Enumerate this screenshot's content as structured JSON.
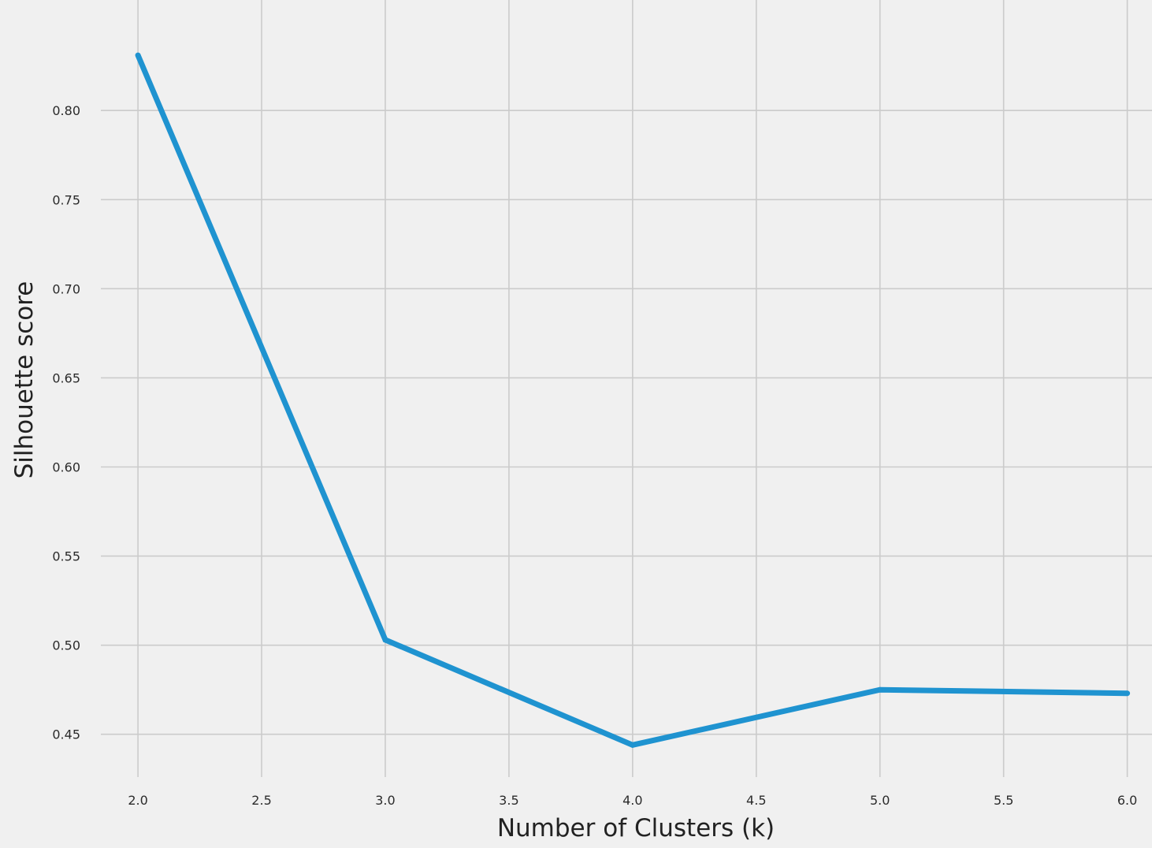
{
  "chart_data": {
    "type": "line",
    "title": "",
    "xlabel": "Number of Clusters (k)",
    "ylabel": "Silhouette score",
    "x": [
      2,
      3,
      4,
      5,
      6
    ],
    "series": [
      {
        "values": [
          0.831,
          0.503,
          0.444,
          0.475,
          0.473
        ]
      }
    ],
    "xlim": [
      1.85,
      6.1
    ],
    "ylim": [
      0.426,
      0.862
    ],
    "xticks": [
      2.0,
      2.5,
      3.0,
      3.5,
      4.0,
      4.5,
      5.0,
      5.5,
      6.0
    ],
    "xtick_labels": [
      "2.0",
      "2.5",
      "3.0",
      "3.5",
      "4.0",
      "4.5",
      "5.0",
      "5.5",
      "6.0"
    ],
    "yticks": [
      0.45,
      0.5,
      0.55,
      0.6,
      0.65,
      0.7,
      0.75,
      0.8
    ],
    "ytick_labels": [
      "0.45",
      "0.50",
      "0.55",
      "0.60",
      "0.65",
      "0.70",
      "0.75",
      "0.80"
    ],
    "grid": true,
    "legend": false,
    "colors": {
      "background": "#f0f0f0",
      "grid": "#cbcbcb",
      "line": "#1f93d0"
    }
  }
}
